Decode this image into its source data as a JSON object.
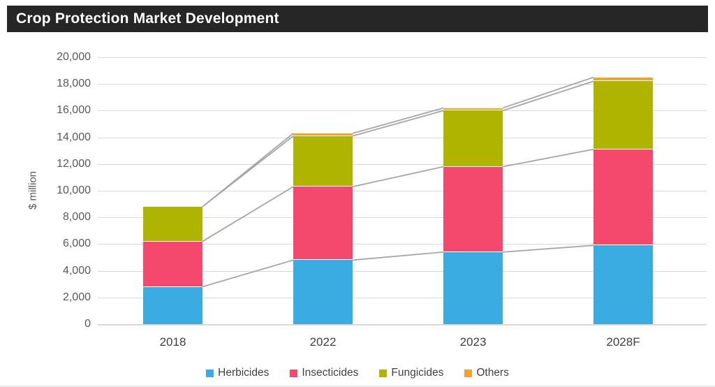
{
  "title": "Crop Protection Market Development",
  "colors": {
    "title_bar_bg": "#262626",
    "title_text": "#ffffff",
    "gridline": "#d9d9d9",
    "axis_line": "#d9d9d9",
    "tick_text": "#595959",
    "category_text": "#404040",
    "connector_line": "#a6a6a6",
    "background": "#ffffff"
  },
  "chart_data": {
    "type": "bar",
    "stacked": true,
    "title": "Crop Protection Market Development",
    "ylabel": "$ million",
    "xlabel": "",
    "ylim": [
      0,
      20000
    ],
    "ytick_step": 2000,
    "ytick_labels": [
      "0",
      "2,000",
      "4,000",
      "6,000",
      "8,000",
      "10,000",
      "12,000",
      "14,000",
      "16,000",
      "18,000",
      "20,000"
    ],
    "grid": true,
    "legend_position": "bottom",
    "series_connector_lines": true,
    "categories": [
      "2018",
      "2022",
      "2023",
      "2028F"
    ],
    "series": [
      {
        "name": "Herbicides",
        "color": "#3bace2",
        "values": [
          2800,
          4800,
          5400,
          5900
        ]
      },
      {
        "name": "Insecticides",
        "color": "#f4486c",
        "values": [
          3400,
          5500,
          6400,
          7200
        ]
      },
      {
        "name": "Fungicides",
        "color": "#afb400",
        "values": [
          2600,
          3800,
          4200,
          5100
        ]
      },
      {
        "name": "Others",
        "color": "#f2a233",
        "values": [
          0,
          200,
          200,
          300
        ]
      }
    ],
    "stack_totals": [
      8800,
      14300,
      16200,
      18500
    ]
  }
}
